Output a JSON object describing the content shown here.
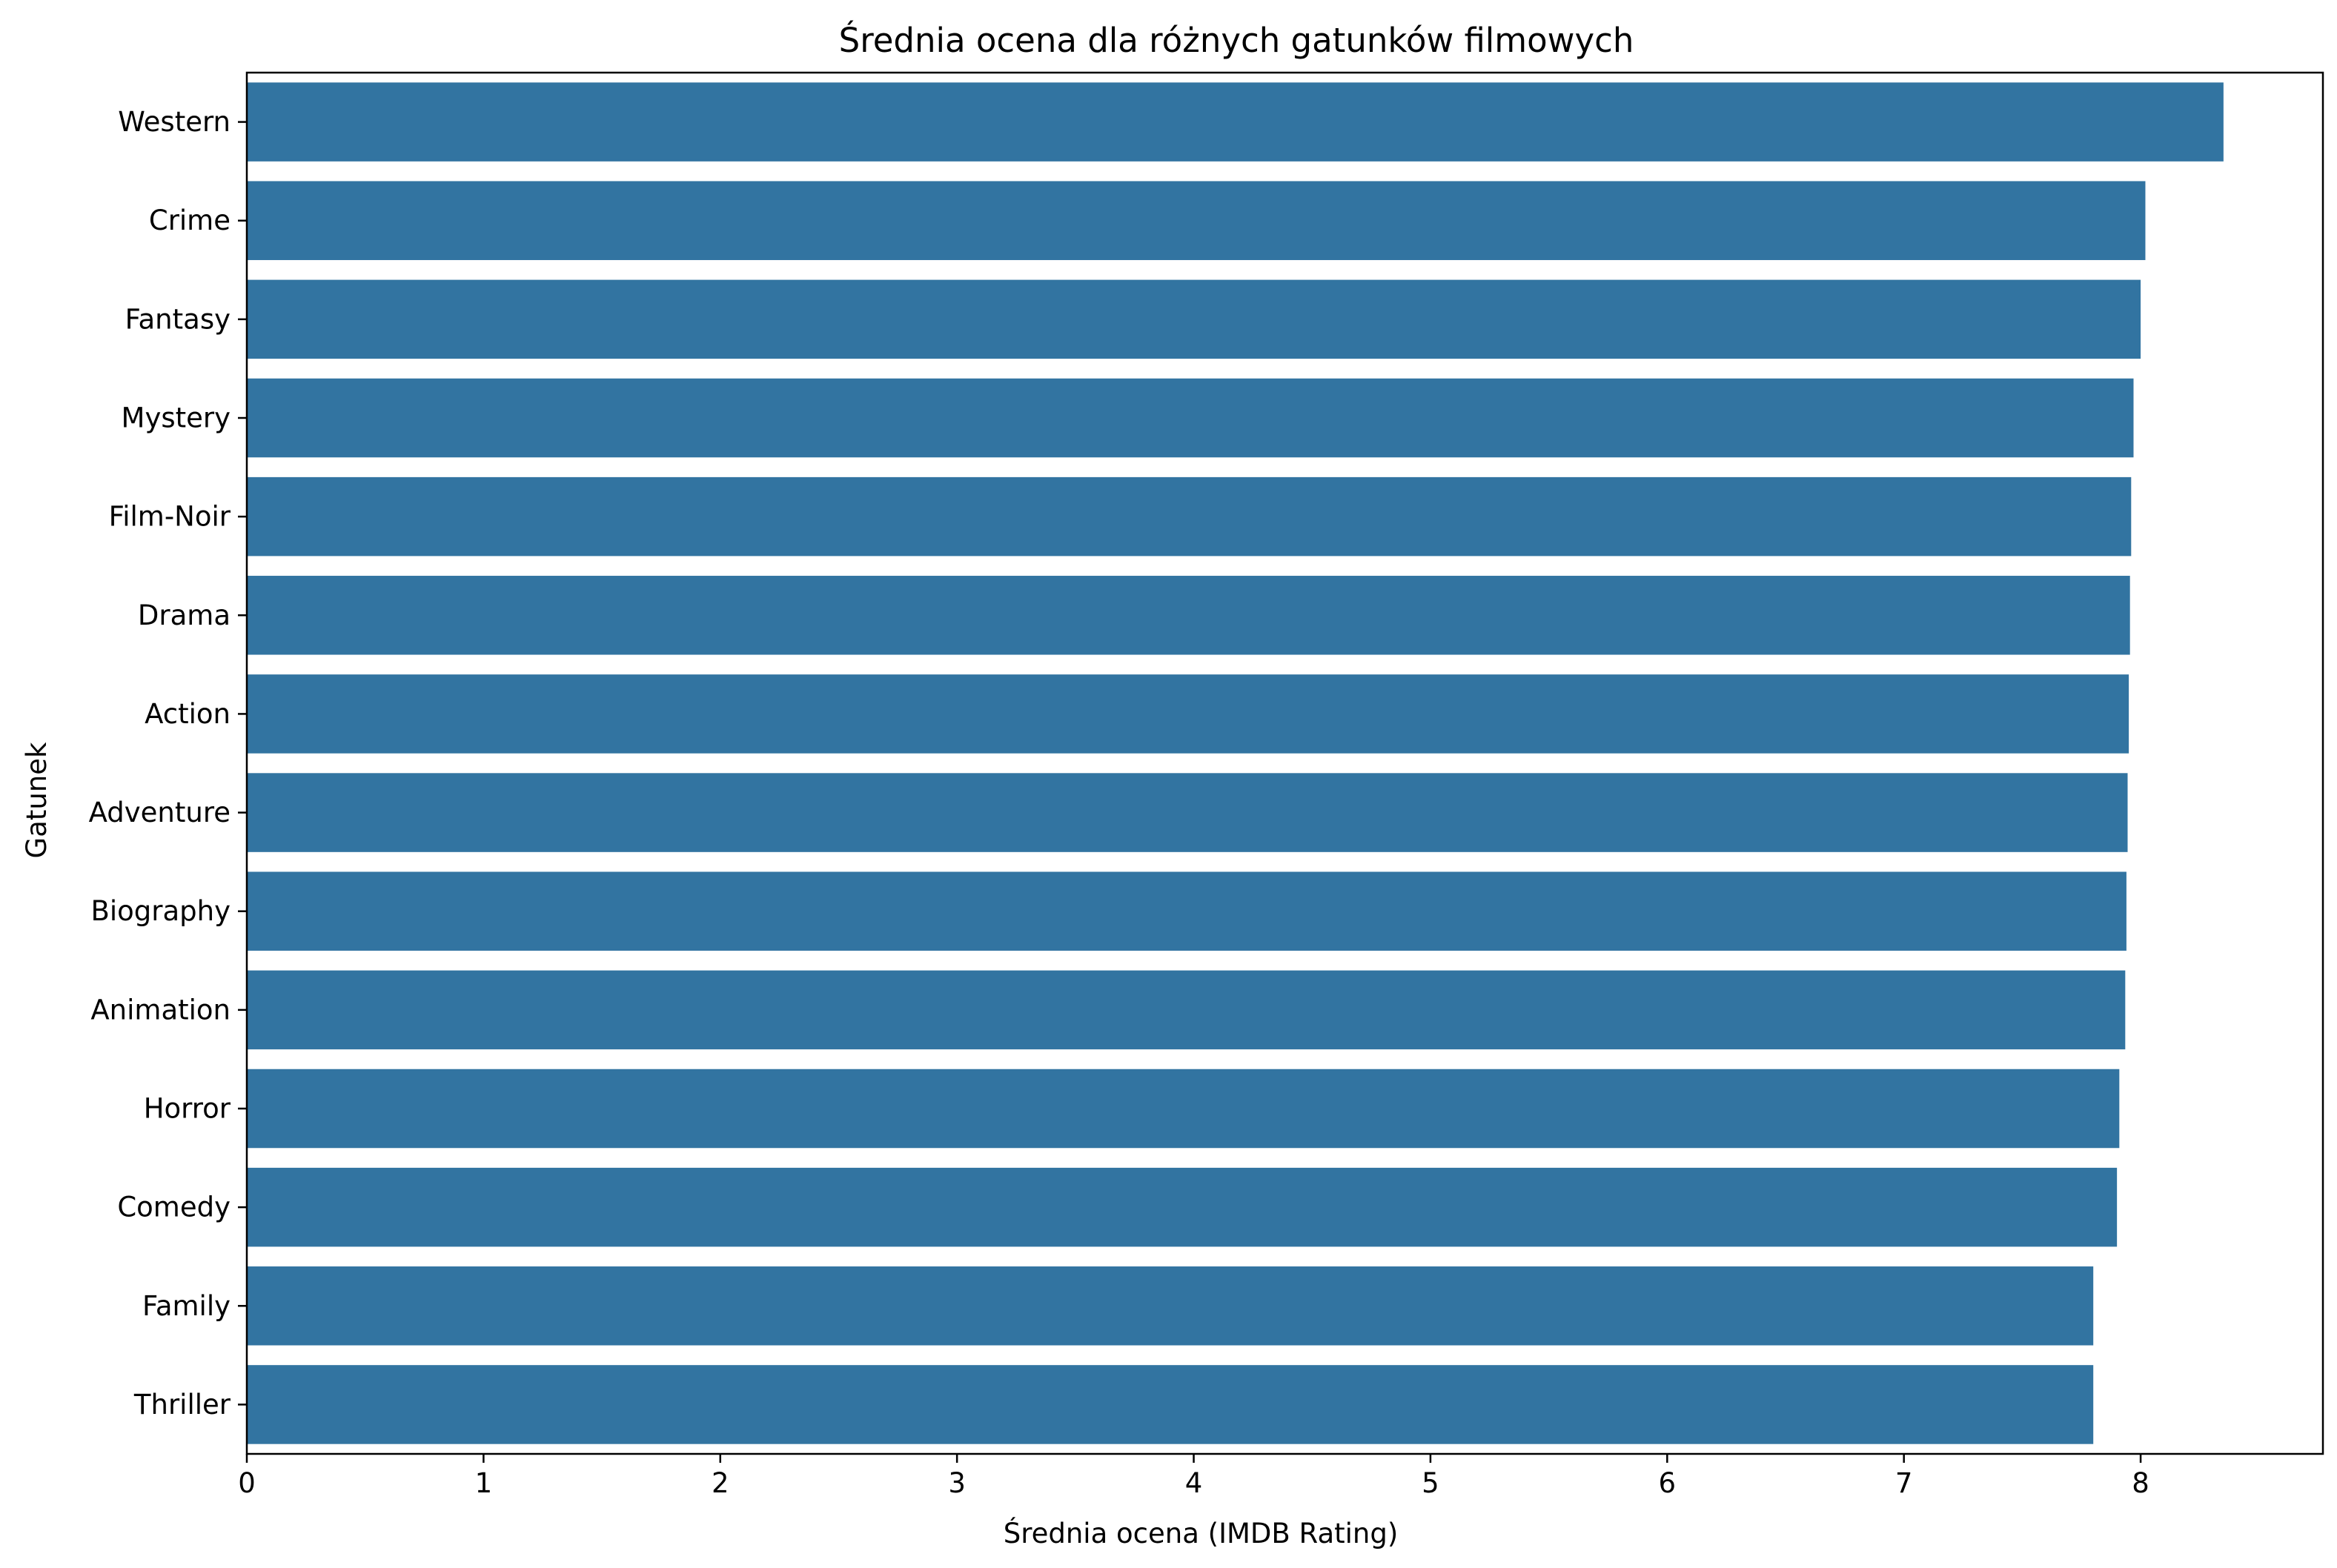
{
  "chart_data": {
    "type": "bar",
    "orientation": "horizontal",
    "title": "Średnia ocena dla różnych gatunków filmowych",
    "xlabel": "Średnia ocena (IMDB Rating)",
    "ylabel": "Gatunek",
    "categories": [
      "Western",
      "Crime",
      "Fantasy",
      "Mystery",
      "Film-Noir",
      "Drama",
      "Action",
      "Adventure",
      "Biography",
      "Animation",
      "Horror",
      "Comedy",
      "Family",
      "Thriller"
    ],
    "values": [
      8.35,
      8.02,
      8.0,
      7.97,
      7.96,
      7.955,
      7.95,
      7.945,
      7.94,
      7.935,
      7.91,
      7.9,
      7.8,
      7.8
    ],
    "xlim": [
      0,
      8.77
    ],
    "xticks": [
      0,
      1,
      2,
      3,
      4,
      5,
      6,
      7,
      8
    ],
    "grid": false,
    "bar_color": "#3274a1"
  }
}
